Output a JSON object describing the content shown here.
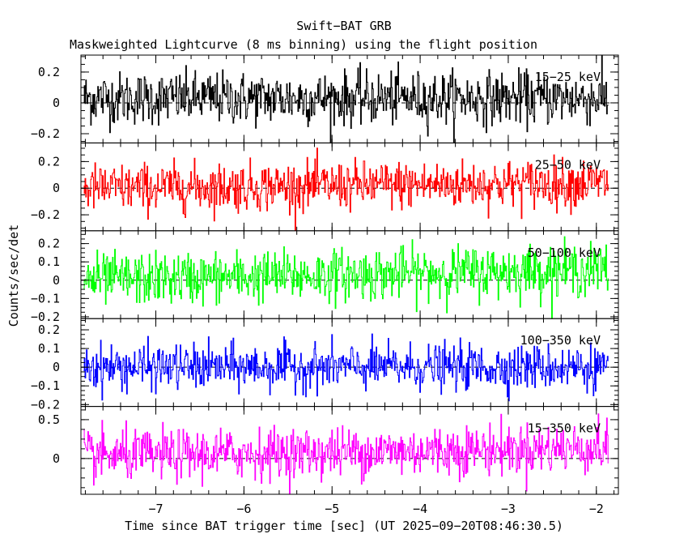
{
  "chart_data": {
    "type": "line",
    "title": "Swift−BAT GRB",
    "subtitle": "Maskweighted Lightcurve (8 ms binning) using the flight position",
    "xlabel": "Time since BAT trigger time [sec] (UT 2025−09−20T08:46:30.5)",
    "ylabel": "Counts/sec/det",
    "xlim": [
      -7.85,
      -1.75
    ],
    "x_ticks": [
      -7,
      -6,
      -5,
      -4,
      -3,
      -2
    ],
    "x_tick_labels": [
      "−7",
      "−6",
      "−5",
      "−4",
      "−3",
      "−2"
    ],
    "t_start": -7.82,
    "t_end": -1.87,
    "bin_seconds": 0.008,
    "panels": [
      {
        "name": "15−25 keV",
        "color": "#000000",
        "ylim": [
          -0.26,
          0.31
        ],
        "y_ticks": [
          -0.2,
          0,
          0.2
        ],
        "y_tick_labels": [
          "−0.2",
          "0",
          "0.2"
        ],
        "noise_sigma": 0.085,
        "trend": [
          [
            -7.82,
            0.03
          ],
          [
            -1.87,
            0.03
          ]
        ]
      },
      {
        "name": "25−50 keV",
        "color": "#ff0000",
        "ylim": [
          -0.32,
          0.34
        ],
        "y_ticks": [
          -0.2,
          0,
          0.2
        ],
        "y_tick_labels": [
          "−0.2",
          "0",
          "0.2"
        ],
        "noise_sigma": 0.09,
        "trend": [
          [
            -7.82,
            0.0
          ],
          [
            -1.87,
            0.04
          ]
        ]
      },
      {
        "name": "50−100 keV",
        "color": "#00ff00",
        "ylim": [
          -0.21,
          0.27
        ],
        "y_ticks": [
          -0.2,
          -0.1,
          0,
          0.1,
          0.2
        ],
        "y_tick_labels": [
          "−0.2",
          "−0.1",
          "0",
          "0.1",
          "0.2"
        ],
        "noise_sigma": 0.07,
        "trend": [
          [
            -7.82,
            0.0
          ],
          [
            -1.87,
            0.06
          ]
        ]
      },
      {
        "name": "100−350 keV",
        "color": "#0000ff",
        "ylim": [
          -0.21,
          0.26
        ],
        "y_ticks": [
          -0.2,
          -0.1,
          0,
          0.1,
          0.2
        ],
        "y_tick_labels": [
          "−0.2",
          "−0.1",
          "0",
          "0.1",
          "0.2"
        ],
        "noise_sigma": 0.06,
        "trend": [
          [
            -7.82,
            0.0
          ],
          [
            -1.87,
            0.0
          ]
        ]
      },
      {
        "name": "15−350 keV",
        "color": "#ff00ff",
        "ylim": [
          -0.46,
          0.67
        ],
        "y_ticks": [
          0,
          0.5
        ],
        "y_tick_labels": [
          "0",
          "0.5"
        ],
        "noise_sigma": 0.16,
        "trend": [
          [
            -7.82,
            0.03
          ],
          [
            -1.87,
            0.14
          ]
        ]
      }
    ]
  }
}
